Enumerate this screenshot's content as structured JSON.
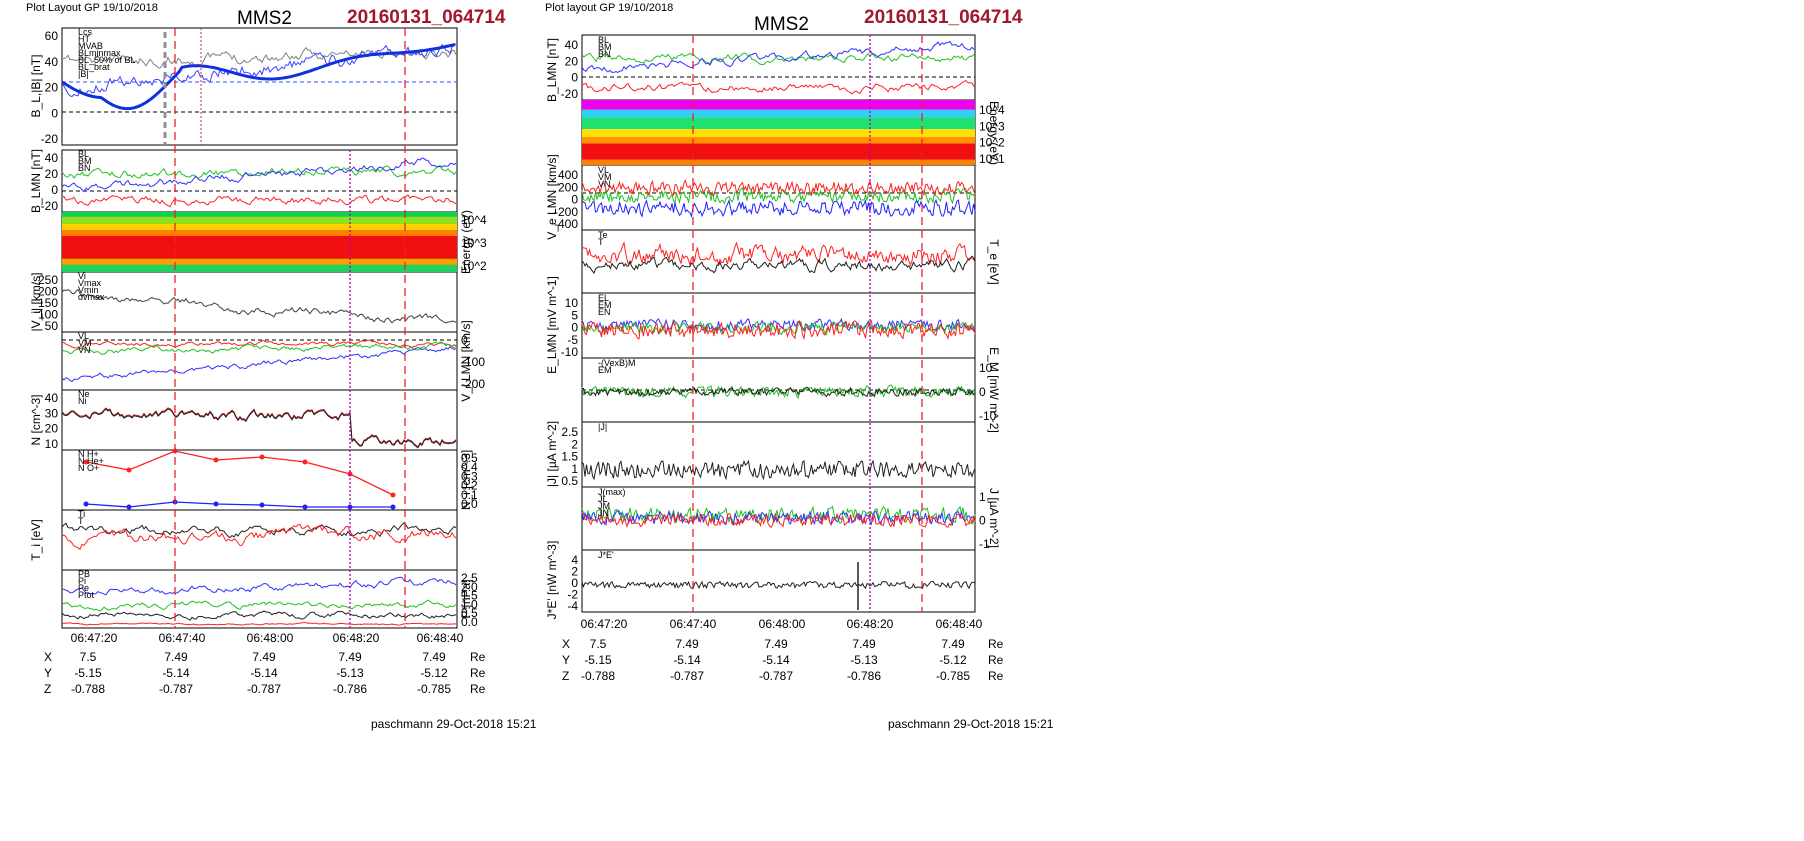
{
  "left": {
    "layout_label": "Plot Layout GP 19/10/2018",
    "spacecraft": "MMS2",
    "event": "20160131_064714",
    "footer": "paschmann 29-Oct-2018 15:21",
    "time_ticks": [
      "06:47:20",
      "06:47:40",
      "06:48:00",
      "06:48:20",
      "06:48:40"
    ],
    "eph_rows": [
      {
        "label": "X",
        "values": [
          "7.5",
          "7.49",
          "7.49",
          "7.49",
          "7.49"
        ],
        "unit": "Re"
      },
      {
        "label": "Y",
        "values": [
          "-5.15",
          "-5.14",
          "-5.14",
          "-5.13",
          "-5.12"
        ],
        "unit": "Re"
      },
      {
        "label": "Z",
        "values": [
          "-0.788",
          "-0.787",
          "-0.787",
          "-0.786",
          "-0.785"
        ],
        "unit": "Re"
      }
    ],
    "panels": [
      {
        "ylabel": "B_L,|B| [nT]",
        "yticks": [
          "60",
          "40",
          "20",
          "0",
          "-20"
        ],
        "legend": [
          "Lcs",
          "HT",
          "MVAB",
          "BLminmax",
          "BL_50% of BL",
          "BL_brat",
          "|B|"
        ]
      },
      {
        "ylabel": "B_LMN [nT]",
        "yticks": [
          "40",
          "20",
          "0",
          "-20"
        ],
        "legend": [
          "BL",
          "BM",
          "BN"
        ]
      },
      {
        "ylabel": "Energy (eV)",
        "yticks": [
          "10^4",
          "10^3",
          "10^2"
        ],
        "legend": []
      },
      {
        "ylabel": "|V_i| [km/s]",
        "yticks": [
          "250",
          "200",
          "150",
          "100",
          "50"
        ],
        "legend": [
          "Vi",
          "Vmax",
          "Vmin",
          "dvmax"
        ]
      },
      {
        "ylabel": "V_i LMN [km/s]",
        "yticks": [
          "0",
          "-100",
          "-200"
        ],
        "legend": [
          "VL",
          "VM",
          "VN"
        ]
      },
      {
        "ylabel": "N [cm^-3]",
        "yticks": [
          "40",
          "30",
          "20",
          "10"
        ],
        "legend": [
          "Ne",
          "Ni"
        ]
      },
      {
        "ylabel": "N_i [cm^-3]",
        "yticks": [
          "0.5",
          "0.4",
          "0.3",
          "0.2",
          "0.1",
          "0.0"
        ],
        "legend": [
          "N H+",
          "N He+",
          "N O+"
        ]
      },
      {
        "ylabel": "T_i [eV]",
        "yticks": [],
        "legend": [
          "Ti",
          "T"
        ]
      },
      {
        "ylabel": "P [nPa]",
        "yticks": [
          "2.5",
          "2.0",
          "1.5",
          "1.0",
          "0.5",
          "0.0"
        ],
        "legend": [
          "PB",
          "Pi",
          "Pe",
          "Ptot"
        ]
      }
    ]
  },
  "right": {
    "layout_label": "Plot layout GP 19/10/2018",
    "spacecraft": "MMS2",
    "event": "20160131_064714",
    "footer": "paschmann 29-Oct-2018 15:21",
    "time_ticks": [
      "06:47:20",
      "06:47:40",
      "06:48:00",
      "06:48:20",
      "06:48:40"
    ],
    "eph_rows": [
      {
        "label": "X",
        "values": [
          "7.5",
          "7.49",
          "7.49",
          "7.49",
          "7.49"
        ],
        "unit": "Re"
      },
      {
        "label": "Y",
        "values": [
          "-5.15",
          "-5.14",
          "-5.14",
          "-5.13",
          "-5.12"
        ],
        "unit": "Re"
      },
      {
        "label": "Z",
        "values": [
          "-0.788",
          "-0.787",
          "-0.787",
          "-0.786",
          "-0.785"
        ],
        "unit": "Re"
      }
    ],
    "panels": [
      {
        "ylabel": "B_LMN [nT]",
        "yticks": [
          "40",
          "20",
          "0",
          "-20"
        ],
        "legend": [
          "BL",
          "BM",
          "BN"
        ]
      },
      {
        "ylabel": "Energy (eV)",
        "yticks": [
          "10^4",
          "10^3",
          "10^2",
          "10^1"
        ],
        "legend": []
      },
      {
        "ylabel": "V_e LMN [km/s]",
        "yticks": [
          "400",
          "200",
          "0",
          "-200",
          "-400"
        ],
        "legend": [
          "VL",
          "VM",
          "VN"
        ]
      },
      {
        "ylabel": "T_e [eV]",
        "yticks": [],
        "legend": [
          "Te",
          "T"
        ]
      },
      {
        "ylabel": "E_LMN [mV m^-1]",
        "yticks": [
          "10",
          "5",
          "0",
          "-5",
          "-10"
        ],
        "legend": [
          "EL",
          "EM",
          "EN"
        ]
      },
      {
        "ylabel": "E_M [mW m^-2]",
        "yticks": [
          "10",
          "0",
          "-10"
        ],
        "legend": [
          "-(VexB)M",
          "EM"
        ]
      },
      {
        "ylabel": "|J| [µA m^-2]",
        "yticks": [
          "2.5",
          "2",
          "1.5",
          "1",
          "0.5"
        ],
        "legend": [
          "|J|"
        ]
      },
      {
        "ylabel": "J [µA m^-2]",
        "yticks": [
          "1",
          "0",
          "-1"
        ],
        "legend": [
          "J(max)",
          "JL",
          "JM",
          "JN"
        ]
      },
      {
        "ylabel": "J*E' [nW m^-3]",
        "yticks": [
          "4",
          "2",
          "0",
          "-2",
          "-4"
        ],
        "legend": [
          "J*E'"
        ]
      }
    ]
  },
  "colors": {
    "dashed_red": "#e8222b",
    "dashed_magenta": "#b000b0",
    "BL": "#2020ff",
    "BM": "#10c010",
    "BN": "#ff2020"
  }
}
